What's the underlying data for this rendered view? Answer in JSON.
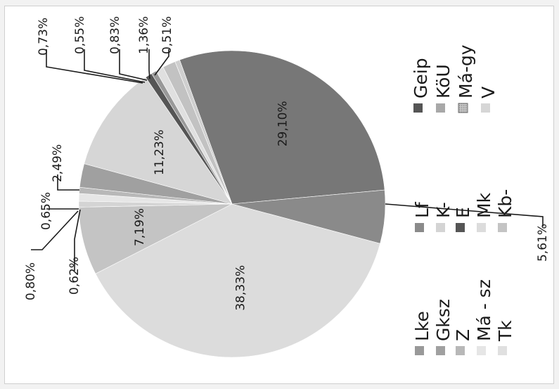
{
  "chart_data": {
    "type": "pie",
    "title": "",
    "orientation": "rotated-90-ccw",
    "legend_placement": "right",
    "slices": [
      {
        "name": "Geip",
        "value": 29.1,
        "label": "29,10%",
        "color": "#777777"
      },
      {
        "name": "Lf",
        "value": 5.61,
        "label": "5,61%",
        "color": "#8a8a8a"
      },
      {
        "name": "Mk",
        "value": 38.33,
        "label": "38,33%",
        "color": "#dcdcdc"
      },
      {
        "name": "Kb-",
        "value": 7.19,
        "label": "7,19%",
        "color": "#c4c4c4"
      },
      {
        "name": "K-",
        "value": 0.62,
        "label": "0,62%",
        "color": "#d4d4d4"
      },
      {
        "name": "Ma-sz",
        "value": 0.8,
        "label": "0,80%",
        "color": "#e6e6e6"
      },
      {
        "name": "Z",
        "value": 0.65,
        "label": "0,65%",
        "color": "#b8b8b8"
      },
      {
        "name": "Gksz",
        "value": 2.49,
        "label": "2,49%",
        "color": "#a0a0a0"
      },
      {
        "name": "V",
        "value": 11.23,
        "label": "11,23%",
        "color": "#d6d6d6"
      },
      {
        "name": "E",
        "value": 0.73,
        "label": "0,73%",
        "color": "#555555"
      },
      {
        "name": "Lke",
        "value": 0.55,
        "label": "0,55%",
        "color": "#999999"
      },
      {
        "name": "Tk",
        "value": 0.83,
        "label": "0,83%",
        "color": "#e0e0e0"
      },
      {
        "name": "KöU",
        "value": 1.36,
        "label": "1,36%",
        "color": "#c2c2c2"
      },
      {
        "name": "Má-gy",
        "value": 0.51,
        "label": "0,51%",
        "color": "#cfcfcf"
      }
    ],
    "legend": [
      {
        "text": "Lke",
        "color": "#999999",
        "pattern": false
      },
      {
        "text": "Gksz",
        "color": "#a0a0a0",
        "pattern": false
      },
      {
        "text": "Z",
        "color": "#b8b8b8",
        "pattern": false
      },
      {
        "text": "Má - sz",
        "color": "#e6e6e6",
        "pattern": false
      },
      {
        "text": "Tk",
        "color": "#e0e0e0",
        "pattern": false
      },
      {
        "text": "Lf",
        "color": "#8a8a8a",
        "pattern": false
      },
      {
        "text": "K-",
        "color": "#d4d4d4",
        "pattern": false
      },
      {
        "text": "E",
        "color": "#555555",
        "pattern": false
      },
      {
        "text": "Mk",
        "color": "#dcdcdc",
        "pattern": false
      },
      {
        "text": "Kb-",
        "color": "#c4c4c4",
        "pattern": false
      },
      {
        "text": "Geip",
        "color": "#555555",
        "pattern": false
      },
      {
        "text": "KöU",
        "color": "#a8a8a8",
        "pattern": false
      },
      {
        "text": "Má-gy",
        "color": "#bdbdbd",
        "pattern": true
      },
      {
        "text": "V",
        "color": "#d6d6d6",
        "pattern": false
      }
    ]
  }
}
